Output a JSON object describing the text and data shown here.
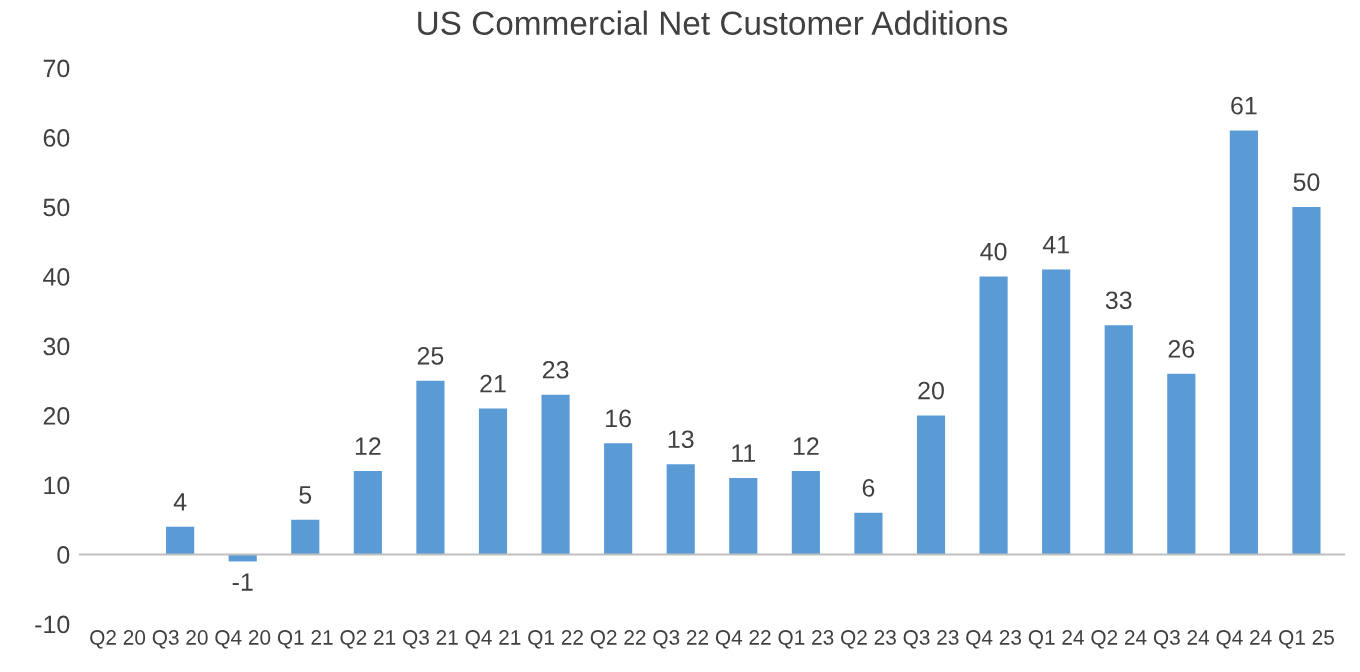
{
  "chart_data": {
    "type": "bar",
    "title": "US Commercial Net Customer Additions",
    "categories": [
      "Q2 20",
      "Q3 20",
      "Q4 20",
      "Q1 21",
      "Q2 21",
      "Q3 21",
      "Q4 21",
      "Q1 22",
      "Q2 22",
      "Q3 22",
      "Q4 22",
      "Q1 23",
      "Q2 23",
      "Q3 23",
      "Q4 23",
      "Q1 24",
      "Q2 24",
      "Q3 24",
      "Q4 24",
      "Q1 25"
    ],
    "values": [
      null,
      4,
      -1,
      5,
      12,
      25,
      21,
      23,
      16,
      13,
      11,
      12,
      6,
      20,
      40,
      41,
      33,
      26,
      61,
      50
    ],
    "color": "#5b9bd5",
    "data_labels": true,
    "ylim": [
      -10,
      70
    ],
    "yticks": [
      -10,
      0,
      10,
      20,
      30,
      40,
      50,
      60,
      70
    ]
  }
}
